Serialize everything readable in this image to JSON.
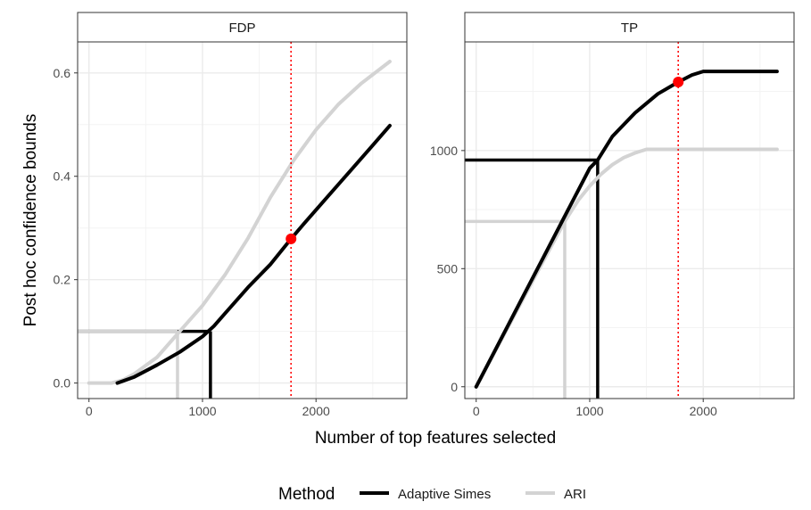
{
  "colors": {
    "adaptive": "#000000",
    "ari": "#d3d3d3",
    "marker": "#ff0000",
    "strip_bg": "#ffffff",
    "grid": "#ebebeb"
  },
  "axes": {
    "xlabel": "Number of top features selected",
    "ylabel": "Post hoc confidence bounds"
  },
  "legend": {
    "title": "Method",
    "position": "bottom"
  },
  "chart_data": [
    {
      "panel": "FDP",
      "type": "line",
      "xlim": [
        -100,
        2800
      ],
      "ylim": [
        -0.03,
        0.66
      ],
      "x_ticks": [
        {
          "v": 0,
          "label": "0"
        },
        {
          "v": 1000,
          "label": "1000"
        },
        {
          "v": 2000,
          "label": "2000"
        }
      ],
      "y_ticks": [
        {
          "v": 0.0,
          "label": "0.0"
        },
        {
          "v": 0.2,
          "label": "0.2"
        },
        {
          "v": 0.4,
          "label": "0.4"
        },
        {
          "v": 0.6,
          "label": "0.6"
        }
      ],
      "grid": true,
      "series": [
        {
          "name": "Adaptive Simes",
          "color": "#000000",
          "x": [
            250,
            400,
            600,
            800,
            1000,
            1100,
            1200,
            1400,
            1600,
            1780,
            1900,
            2100,
            2300,
            2500,
            2650
          ],
          "y": [
            0.0,
            0.012,
            0.035,
            0.06,
            0.09,
            0.11,
            0.135,
            0.185,
            0.23,
            0.279,
            0.31,
            0.36,
            0.41,
            0.46,
            0.498
          ]
        },
        {
          "name": "ARI",
          "color": "#d3d3d3",
          "x": [
            0,
            200,
            300,
            400,
            600,
            800,
            1000,
            1200,
            1400,
            1600,
            1800,
            2000,
            2200,
            2400,
            2650
          ],
          "y": [
            0.0,
            0.0,
            0.006,
            0.018,
            0.05,
            0.1,
            0.15,
            0.21,
            0.28,
            0.36,
            0.43,
            0.49,
            0.54,
            0.58,
            0.622
          ]
        }
      ],
      "reference_segments": [
        {
          "series": "Adaptive Simes",
          "x": 1070,
          "y": 0.1
        },
        {
          "series": "ARI",
          "x": 780,
          "y": 0.1
        }
      ],
      "vline_x": 1780,
      "marker": {
        "x": 1780,
        "y": 0.279
      }
    },
    {
      "panel": "TP",
      "type": "line",
      "xlim": [
        -100,
        2800
      ],
      "ylim": [
        -50,
        1460
      ],
      "x_ticks": [
        {
          "v": 0,
          "label": "0"
        },
        {
          "v": 1000,
          "label": "1000"
        },
        {
          "v": 2000,
          "label": "2000"
        }
      ],
      "y_ticks": [
        {
          "v": 0,
          "label": "0"
        },
        {
          "v": 500,
          "label": "500"
        },
        {
          "v": 1000,
          "label": "1000"
        }
      ],
      "grid": true,
      "series": [
        {
          "name": "Adaptive Simes",
          "color": "#000000",
          "x": [
            0,
            200,
            400,
            600,
            800,
            1000,
            1070,
            1200,
            1400,
            1600,
            1780,
            1900,
            2000,
            2650
          ],
          "y": [
            0,
            185,
            370,
            555,
            740,
            925,
            960,
            1060,
            1160,
            1240,
            1290,
            1320,
            1335,
            1335
          ]
        },
        {
          "name": "ARI",
          "color": "#d3d3d3",
          "x": [
            0,
            200,
            400,
            600,
            780,
            900,
            1000,
            1100,
            1200,
            1300,
            1400,
            1500,
            2650
          ],
          "y": [
            0,
            180,
            360,
            540,
            700,
            790,
            850,
            900,
            940,
            970,
            990,
            1005,
            1005
          ]
        }
      ],
      "reference_segments": [
        {
          "series": "Adaptive Simes",
          "x": 1070,
          "y": 960
        },
        {
          "series": "ARI",
          "x": 780,
          "y": 700
        }
      ],
      "vline_x": 1780,
      "marker": {
        "x": 1780,
        "y": 1290
      }
    }
  ]
}
